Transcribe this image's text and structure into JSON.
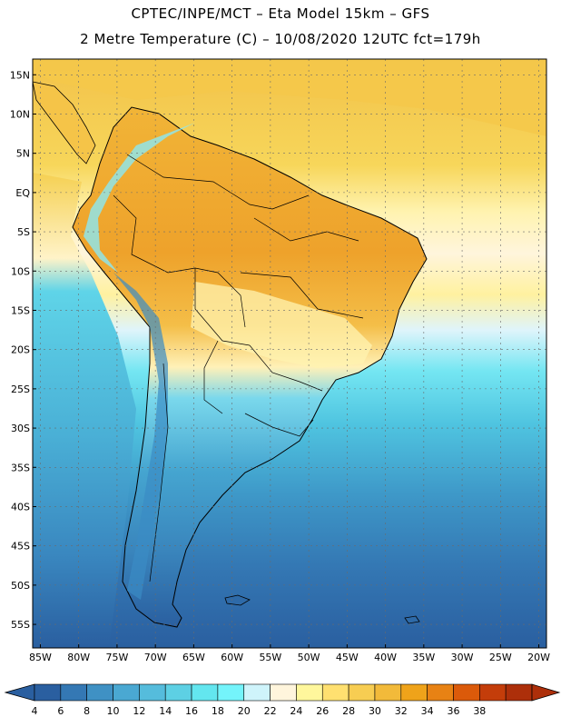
{
  "header": {
    "line1": "CPTEC/INPE/MCT –  Eta Model 15km – GFS",
    "line2": "2 Metre Temperature (C) – 10/08/2020 12UTC fct=179h"
  },
  "map": {
    "lat_labels": [
      "15N",
      "10N",
      "5N",
      "EQ",
      "5S",
      "10S",
      "15S",
      "20S",
      "25S",
      "30S",
      "35S",
      "40S",
      "45S",
      "50S",
      "55S"
    ],
    "lat_values": [
      15,
      10,
      5,
      0,
      -5,
      -10,
      -15,
      -20,
      -25,
      -30,
      -35,
      -40,
      -45,
      -50,
      -55
    ],
    "lon_labels": [
      "85W",
      "80W",
      "75W",
      "70W",
      "65W",
      "60W",
      "55W",
      "50W",
      "45W",
      "40W",
      "35W",
      "30W",
      "25W",
      "20W"
    ],
    "lon_values": [
      -85,
      -80,
      -75,
      -70,
      -65,
      -60,
      -55,
      -50,
      -45,
      -40,
      -35,
      -30,
      -25,
      -20
    ],
    "lon_range": [
      -86,
      -19
    ],
    "lat_range": [
      -58,
      17
    ]
  },
  "colorbar": {
    "labels": [
      "4",
      "6",
      "8",
      "10",
      "12",
      "14",
      "16",
      "18",
      "20",
      "22",
      "24",
      "26",
      "28",
      "30",
      "32",
      "34",
      "36",
      "38"
    ],
    "colors": [
      "#2a5fa0",
      "#3478b4",
      "#3f91c4",
      "#4aa8d2",
      "#55bcdc",
      "#5dd0e4",
      "#63e6ef",
      "#74f4fb",
      "#cff4fb",
      "#fff5dc",
      "#fff79c",
      "#ffe070",
      "#f7cd52",
      "#f2ba3a",
      "#efa31a",
      "#e88214",
      "#db5a0a",
      "#c43d0a",
      "#ad2f0a"
    ],
    "colors_note": "",
    "low_color": "#2a5fa0",
    "high_color": "#ad2f0a"
  }
}
